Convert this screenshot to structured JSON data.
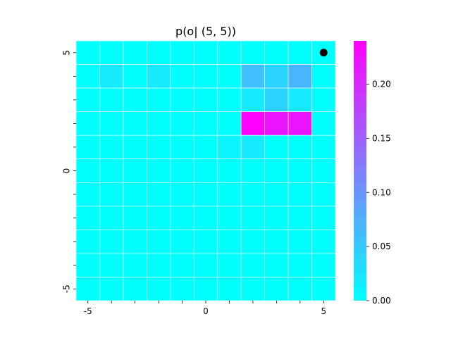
{
  "chart_data": {
    "type": "heatmap",
    "title": "p(o| (5, 5))",
    "xlabel": "",
    "ylabel": "",
    "colormap": "cool",
    "x": [
      -5,
      -4,
      -3,
      -2,
      -1,
      0,
      1,
      2,
      3,
      4,
      5
    ],
    "y": [
      5,
      4,
      3,
      2,
      1,
      0,
      -1,
      -2,
      -3,
      -4,
      -5
    ],
    "x_tick_labels": [
      "-5",
      "0",
      "5"
    ],
    "y_tick_labels": [
      "5",
      "0",
      "-5"
    ],
    "values": [
      [
        0.0,
        0.0,
        0.0,
        0.0,
        0.0,
        0.0,
        0.0,
        0.0,
        0.0,
        0.0,
        0.0
      ],
      [
        0.0,
        0.02,
        0.0,
        0.02,
        0.0,
        0.0,
        0.0,
        0.06,
        0.04,
        0.07,
        0.0
      ],
      [
        0.0,
        0.0,
        0.0,
        0.0,
        0.0,
        0.0,
        0.0,
        0.02,
        0.04,
        0.02,
        0.0
      ],
      [
        0.0,
        0.0,
        0.0,
        0.0,
        0.0,
        0.0,
        0.0,
        0.24,
        0.22,
        0.22,
        0.0
      ],
      [
        0.0,
        0.0,
        0.0,
        0.0,
        0.0,
        0.0,
        0.01,
        0.02,
        0.0,
        0.0,
        0.0
      ],
      [
        0.0,
        0.0,
        0.0,
        0.0,
        0.0,
        0.0,
        0.0,
        0.0,
        0.0,
        0.0,
        0.0
      ],
      [
        0.0,
        0.0,
        0.0,
        0.0,
        0.0,
        0.0,
        0.0,
        0.0,
        0.0,
        0.0,
        0.0
      ],
      [
        0.0,
        0.0,
        0.0,
        0.0,
        0.0,
        0.0,
        0.0,
        0.0,
        0.0,
        0.0,
        0.0
      ],
      [
        0.0,
        0.0,
        0.0,
        0.0,
        0.0,
        0.0,
        0.0,
        0.0,
        0.0,
        0.0,
        0.0
      ],
      [
        0.0,
        0.0,
        0.0,
        0.0,
        0.0,
        0.0,
        0.0,
        0.0,
        0.0,
        0.0,
        0.0
      ],
      [
        0.0,
        0.0,
        0.0,
        0.0,
        0.0,
        0.0,
        0.0,
        0.0,
        0.0,
        0.0,
        0.0
      ]
    ],
    "vmin": 0.0,
    "vmax": 0.24,
    "marker": {
      "x": 5,
      "y": 5,
      "color": "#000000"
    },
    "colorbar": {
      "ticks": [
        0.0,
        0.05,
        0.1,
        0.15,
        0.2
      ],
      "tick_labels": [
        "0.00",
        "0.05",
        "0.10",
        "0.15",
        "0.20"
      ]
    },
    "grid": true,
    "legend": "none"
  }
}
